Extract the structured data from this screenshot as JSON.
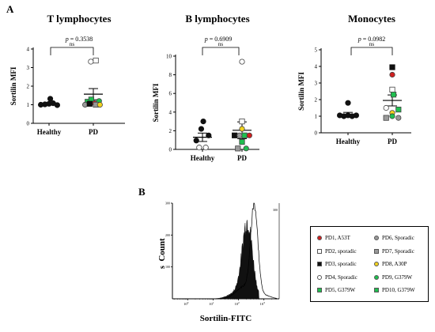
{
  "panel_labels": {
    "a": "A",
    "b": "B"
  },
  "chart_data": [
    {
      "type": "scatter",
      "title": "T lymphocytes",
      "pvalue": "= 0.3538",
      "sig": "ns",
      "ylabel": "Sortilin MFI",
      "categories": [
        "Healthy",
        "PD"
      ],
      "ylim": [
        0,
        4
      ],
      "yticks": [
        "0",
        "1",
        "2",
        "3",
        "4"
      ],
      "bars": {
        "Healthy": {
          "mean": 1.07,
          "err": 0.06
        },
        "PD": {
          "mean": 1.57,
          "err": 0.3
        }
      },
      "points": [
        {
          "group": "Healthy",
          "value": 1.0,
          "offset": -2,
          "shape": "circle",
          "fill": "#111111"
        },
        {
          "group": "Healthy",
          "value": 1.02,
          "offset": -1,
          "shape": "circle",
          "fill": "#111111"
        },
        {
          "group": "Healthy",
          "value": 1.05,
          "offset": 0,
          "shape": "circle",
          "fill": "#111111"
        },
        {
          "group": "Healthy",
          "value": 1.08,
          "offset": 1,
          "shape": "circle",
          "fill": "#111111"
        },
        {
          "group": "Healthy",
          "value": 0.98,
          "offset": 2,
          "shape": "circle",
          "fill": "#111111"
        },
        {
          "group": "Healthy",
          "value": 1.32,
          "offset": 0.3,
          "shape": "circle",
          "fill": "#111111"
        },
        {
          "group": "PD",
          "value": 3.32,
          "offset": -0.6,
          "shape": "circle",
          "fill": "#ffffff"
        },
        {
          "group": "PD",
          "value": 3.38,
          "offset": 0.6,
          "shape": "square",
          "fill": "#ffffff"
        },
        {
          "group": "PD",
          "value": 1.16,
          "offset": -1.4,
          "shape": "square",
          "fill": "#1fbf4f"
        },
        {
          "group": "PD",
          "value": 1.28,
          "offset": -0.5,
          "shape": "square",
          "fill": "#1fbf4f"
        },
        {
          "group": "PD",
          "value": 1.08,
          "offset": 0.3,
          "shape": "circle",
          "fill": "#d01f1f"
        },
        {
          "group": "PD",
          "value": 1.2,
          "offset": 1.4,
          "shape": "circle",
          "fill": "#1fbf4f"
        },
        {
          "group": "PD",
          "value": 1.0,
          "offset": -2,
          "shape": "circle",
          "fill": "#999999"
        },
        {
          "group": "PD",
          "value": 1.05,
          "offset": -0.9,
          "shape": "square",
          "fill": "#111111"
        },
        {
          "group": "PD",
          "value": 1.0,
          "offset": 0.6,
          "shape": "square",
          "fill": "#999999"
        },
        {
          "group": "PD",
          "value": 1.0,
          "offset": 1.6,
          "shape": "circle",
          "fill": "#f2d21f"
        }
      ]
    },
    {
      "type": "scatter",
      "title": "B lymphocytes",
      "pvalue": "= 0.6909",
      "sig": "ns",
      "ylabel": "Sortilin MFI",
      "categories": [
        "Healthy",
        "PD"
      ],
      "ylim": [
        0,
        10
      ],
      "yticks": [
        "0",
        "2",
        "4",
        "6",
        "8",
        "10"
      ],
      "bars": {
        "Healthy": {
          "mean": 1.3,
          "err": 0.45
        },
        "PD": {
          "mean": 2.05,
          "err": 0.9
        }
      },
      "points": [
        {
          "group": "Healthy",
          "value": 3.0,
          "offset": 0.2,
          "shape": "circle",
          "fill": "#111111"
        },
        {
          "group": "Healthy",
          "value": 2.2,
          "offset": -0.3,
          "shape": "circle",
          "fill": "#111111"
        },
        {
          "group": "Healthy",
          "value": 1.5,
          "offset": 1.5,
          "shape": "circle",
          "fill": "#111111"
        },
        {
          "group": "Healthy",
          "value": 0.95,
          "offset": -1.5,
          "shape": "circle",
          "fill": "#111111"
        },
        {
          "group": "Healthy",
          "value": 0.2,
          "offset": -0.8,
          "shape": "circle",
          "fill": "#ffffff"
        },
        {
          "group": "Healthy",
          "value": 0.2,
          "offset": 0.8,
          "shape": "circle",
          "fill": "#ffffff"
        },
        {
          "group": "PD",
          "value": 9.4,
          "offset": 0,
          "shape": "circle",
          "fill": "#ffffff"
        },
        {
          "group": "PD",
          "value": 3.0,
          "offset": 0,
          "shape": "square",
          "fill": "#ffffff"
        },
        {
          "group": "PD",
          "value": 2.2,
          "offset": 0,
          "shape": "circle",
          "fill": "#f2d21f"
        },
        {
          "group": "PD",
          "value": 1.5,
          "offset": -1.8,
          "shape": "square",
          "fill": "#111111"
        },
        {
          "group": "PD",
          "value": 1.5,
          "offset": -0.6,
          "shape": "circle",
          "fill": "#999999"
        },
        {
          "group": "PD",
          "value": 1.5,
          "offset": 0.6,
          "shape": "square",
          "fill": "#1fbf4f"
        },
        {
          "group": "PD",
          "value": 1.5,
          "offset": 1.8,
          "shape": "circle",
          "fill": "#d01f1f"
        },
        {
          "group": "PD",
          "value": 0.8,
          "offset": 0,
          "shape": "square",
          "fill": "#1fbf4f"
        },
        {
          "group": "PD",
          "value": 0.1,
          "offset": -1.0,
          "shape": "square",
          "fill": "#999999"
        },
        {
          "group": "PD",
          "value": 0.1,
          "offset": 1.0,
          "shape": "circle",
          "fill": "#1fbf4f"
        }
      ]
    },
    {
      "type": "scatter",
      "title": "Monocytes",
      "pvalue": "= 0.0982",
      "sig": "ns",
      "ylabel": "Sortilin MFI",
      "categories": [
        "Healthy",
        "PD"
      ],
      "ylim": [
        0,
        5
      ],
      "yticks": [
        "0",
        "1",
        "2",
        "3",
        "4",
        "5"
      ],
      "bars": {
        "Healthy": {
          "mean": 1.1,
          "err": 0.13
        },
        "PD": {
          "mean": 1.95,
          "err": 0.33
        }
      },
      "points": [
        {
          "group": "Healthy",
          "value": 1.8,
          "offset": 0,
          "shape": "circle",
          "fill": "#111111"
        },
        {
          "group": "Healthy",
          "value": 1.05,
          "offset": -2,
          "shape": "circle",
          "fill": "#111111"
        },
        {
          "group": "Healthy",
          "value": 1.0,
          "offset": -1,
          "shape": "circle",
          "fill": "#111111"
        },
        {
          "group": "Healthy",
          "value": 1.05,
          "offset": 0,
          "shape": "circle",
          "fill": "#111111"
        },
        {
          "group": "Healthy",
          "value": 1.0,
          "offset": 1,
          "shape": "circle",
          "fill": "#111111"
        },
        {
          "group": "Healthy",
          "value": 1.05,
          "offset": 2,
          "shape": "circle",
          "fill": "#111111"
        },
        {
          "group": "PD",
          "value": 3.95,
          "offset": 0,
          "shape": "square",
          "fill": "#111111"
        },
        {
          "group": "PD",
          "value": 3.5,
          "offset": 0,
          "shape": "circle",
          "fill": "#d01f1f"
        },
        {
          "group": "PD",
          "value": 2.6,
          "offset": 0,
          "shape": "square",
          "fill": "#ffffff"
        },
        {
          "group": "PD",
          "value": 2.3,
          "offset": 0.3,
          "shape": "square",
          "fill": "#1fbf4f"
        },
        {
          "group": "PD",
          "value": 1.5,
          "offset": -1.5,
          "shape": "circle",
          "fill": "#ffffff"
        },
        {
          "group": "PD",
          "value": 1.4,
          "offset": 1.5,
          "shape": "square",
          "fill": "#1fbf4f"
        },
        {
          "group": "PD",
          "value": 1.2,
          "offset": 0,
          "shape": "circle",
          "fill": "#f2d21f"
        },
        {
          "group": "PD",
          "value": 1.0,
          "offset": 0,
          "shape": "circle",
          "fill": "#1fbf4f"
        },
        {
          "group": "PD",
          "value": 0.9,
          "offset": -1.5,
          "shape": "square",
          "fill": "#999999"
        },
        {
          "group": "PD",
          "value": 0.9,
          "offset": 1.5,
          "shape": "circle",
          "fill": "#999999"
        }
      ]
    },
    {
      "type": "histogram",
      "xlabel": "Sortilin-FITC",
      "ylabel": "Count",
      "ylabel2": "s",
      "xscale": "log",
      "xticks": [
        {
          "base": "10",
          "exp": "0"
        },
        {
          "base": "10",
          "exp": "1"
        },
        {
          "base": "10",
          "exp": "2"
        },
        {
          "base": "10",
          "exp": "3"
        }
      ],
      "yticks": [
        "100",
        "200",
        "300"
      ],
      "yticks_right": [
        "300"
      ],
      "ymax": 300,
      "xrange": [
        -0.6,
        3.6
      ]
    }
  ],
  "legend": [
    {
      "label": "PD1, A53T",
      "shape": "circle",
      "fill": "#d01f1f"
    },
    {
      "label": "PD2, sporadic",
      "shape": "square",
      "fill": "#ffffff"
    },
    {
      "label": "PD3, sporadic",
      "shape": "square",
      "fill": "#111111"
    },
    {
      "label": "PD4, Sporadic",
      "shape": "circle",
      "fill": "#ffffff"
    },
    {
      "label": "PD5, G379W",
      "shape": "square",
      "fill": "#1fbf4f"
    },
    {
      "label": "PD6, Sporadic",
      "shape": "circle",
      "fill": "#999999"
    },
    {
      "label": "PD7, Sporadic",
      "shape": "square",
      "fill": "#999999"
    },
    {
      "label": "PD8, A30P",
      "shape": "circle",
      "fill": "#f2d21f"
    },
    {
      "label": "PD9, G379W",
      "shape": "circle",
      "fill": "#1fbf4f"
    },
    {
      "label": "PD10, G379W",
      "shape": "square",
      "fill": "#1fbf4f"
    }
  ]
}
